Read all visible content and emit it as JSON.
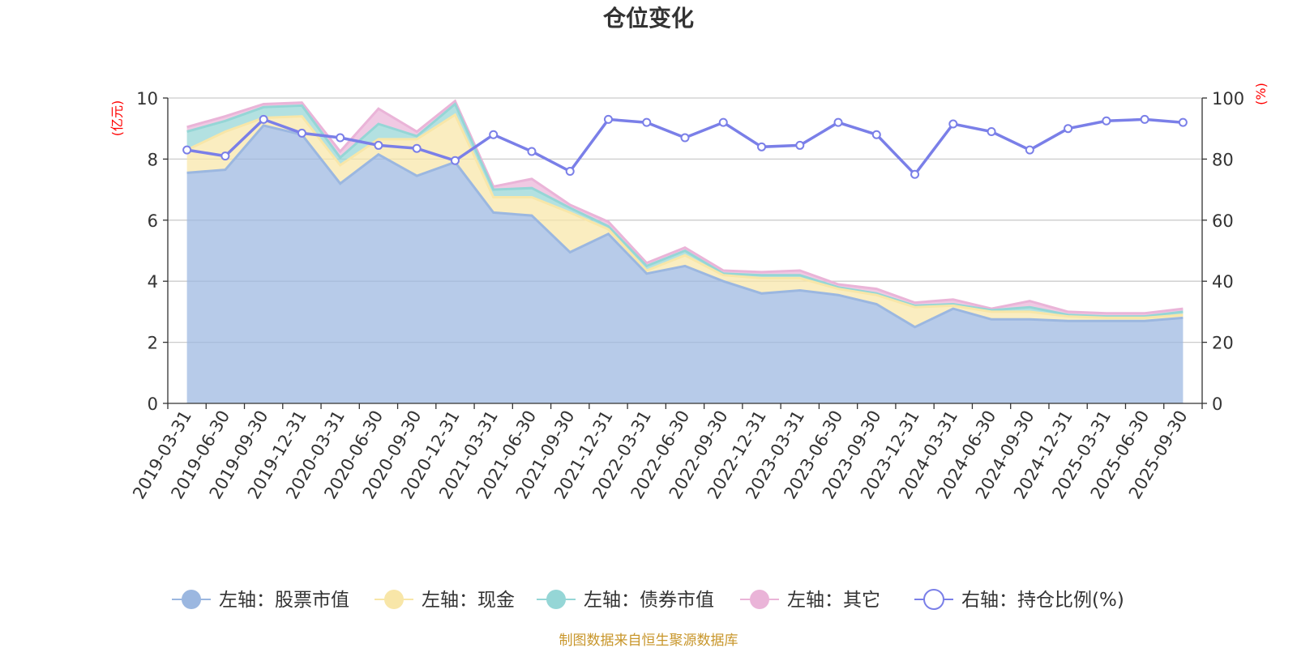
{
  "chart_data": {
    "type": "area",
    "title": "仓位变化",
    "left_axis": {
      "unit": "(亿元)",
      "ylim": [
        0,
        10
      ],
      "ticks": [
        0,
        2,
        4,
        6,
        8,
        10
      ]
    },
    "right_axis": {
      "unit": "(%)",
      "ylim": [
        0,
        100
      ],
      "ticks": [
        0,
        20,
        40,
        60,
        80,
        100
      ]
    },
    "categories": [
      "2019-03-31",
      "2019-06-30",
      "2019-09-30",
      "2019-12-31",
      "2020-03-31",
      "2020-06-30",
      "2020-09-30",
      "2020-12-31",
      "2021-03-31",
      "2021-06-30",
      "2021-09-30",
      "2021-12-31",
      "2022-03-31",
      "2022-06-30",
      "2022-09-30",
      "2022-12-31",
      "2023-03-31",
      "2023-06-30",
      "2023-09-30",
      "2023-12-31",
      "2024-03-31",
      "2024-06-30",
      "2024-09-30",
      "2024-12-31",
      "2025-03-31",
      "2025-06-30",
      "2025-09-30"
    ],
    "series": [
      {
        "name": "左轴：股票市值",
        "axis": "left",
        "color": "#9bb7e0",
        "values": [
          7.55,
          7.65,
          9.1,
          8.8,
          7.2,
          8.15,
          7.45,
          7.9,
          6.25,
          6.15,
          4.95,
          5.55,
          4.25,
          4.5,
          4.0,
          3.6,
          3.7,
          3.55,
          3.25,
          2.5,
          3.1,
          2.75,
          2.75,
          2.7,
          2.7,
          2.7,
          2.8
        ]
      },
      {
        "name": "左轴：现金",
        "axis": "left",
        "color": "#f8e6a8",
        "values": [
          0.75,
          1.25,
          0.25,
          0.6,
          0.6,
          0.5,
          1.2,
          1.55,
          0.5,
          0.6,
          1.3,
          0.15,
          0.1,
          0.35,
          0.2,
          0.5,
          0.4,
          0.2,
          0.3,
          0.65,
          0.1,
          0.25,
          0.25,
          0.15,
          0.1,
          0.1,
          0.1
        ]
      },
      {
        "name": "左轴：债券市值",
        "axis": "left",
        "color": "#95d6d6",
        "values": [
          0.6,
          0.35,
          0.35,
          0.35,
          0.25,
          0.5,
          0.1,
          0.35,
          0.25,
          0.3,
          0.15,
          0.1,
          0.15,
          0.15,
          0.05,
          0.1,
          0.1,
          0.05,
          0.05,
          0.05,
          0.05,
          0.05,
          0.15,
          0.05,
          0.05,
          0.05,
          0.1
        ]
      },
      {
        "name": "左轴：其它",
        "axis": "left",
        "color": "#eab4d8",
        "values": [
          0.15,
          0.15,
          0.1,
          0.1,
          0.2,
          0.5,
          0.15,
          0.1,
          0.1,
          0.3,
          0.1,
          0.15,
          0.1,
          0.1,
          0.1,
          0.1,
          0.15,
          0.1,
          0.15,
          0.1,
          0.15,
          0.05,
          0.2,
          0.1,
          0.1,
          0.1,
          0.1
        ]
      },
      {
        "name": "右轴：持仓比例(%)",
        "axis": "right",
        "type": "line",
        "color": "#7a7fe8",
        "values": [
          83,
          81,
          93,
          88.5,
          87,
          84.5,
          83.5,
          79.5,
          88,
          82.5,
          76,
          93,
          92,
          87,
          92,
          84,
          84.5,
          92,
          88,
          75,
          91.5,
          89,
          83,
          90,
          92.5,
          93,
          92
        ]
      }
    ],
    "legend": "bottom",
    "grid": true
  },
  "source_note": "制图数据来自恒生聚源数据库",
  "colors": {
    "axis": "#333333",
    "grid": "#cccccc",
    "unit": "#ff0000",
    "source": "#c8962b"
  }
}
